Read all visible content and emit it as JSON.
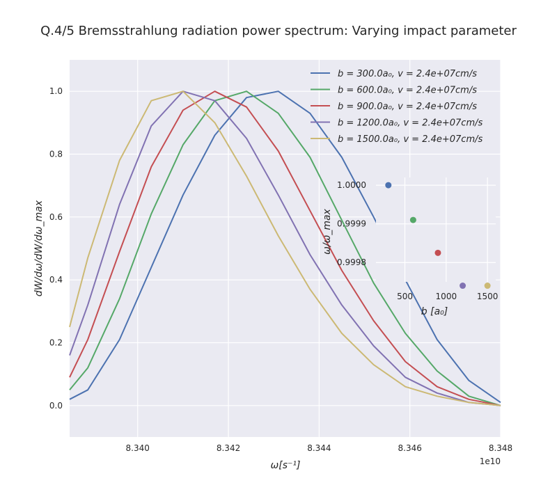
{
  "chart_data": [
    {
      "type": "line",
      "title": "Q.4/5 Bremsstrahlung radiation power spectrum: Varying impact parameter",
      "xlabel": "ω[s⁻¹]",
      "ylabel": "dW/dω/dW/dω_max",
      "x_offset_label": "1e10",
      "xlim": [
        83385000000.0,
        83480000000.0
      ],
      "ylim": [
        -0.1,
        1.1
      ],
      "xticks": [
        83400000000.0,
        83420000000.0,
        83440000000.0,
        83460000000.0,
        83480000000.0
      ],
      "xtick_labels": [
        "8.340",
        "8.342",
        "8.344",
        "8.346",
        "8.348"
      ],
      "yticks": [
        0.0,
        0.2,
        0.4,
        0.6,
        0.8,
        1.0
      ],
      "ytick_labels": [
        "0.0",
        "0.2",
        "0.4",
        "0.6",
        "0.8",
        "1.0"
      ],
      "grid": true,
      "legend_position": "top-right",
      "series": [
        {
          "name": "b = 300.0a₀, v = 2.4e+07cm/s",
          "color": "#4c72b0",
          "x": [
            83385000000.0,
            83389000000.0,
            83396000000.0,
            83403000000.0,
            83410000000.0,
            83417000000.0,
            83424000000.0,
            83431000000.0,
            83438000000.0,
            83445000000.0,
            83452000000.0,
            83459000000.0,
            83466000000.0,
            83473000000.0,
            83480000000.0
          ],
          "y": [
            0.02,
            0.05,
            0.21,
            0.44,
            0.67,
            0.86,
            0.98,
            1.0,
            0.93,
            0.79,
            0.6,
            0.4,
            0.21,
            0.08,
            0.01
          ]
        },
        {
          "name": "b = 600.0a₀, v = 2.4e+07cm/s",
          "color": "#55a868",
          "x": [
            83385000000.0,
            83389000000.0,
            83396000000.0,
            83403000000.0,
            83410000000.0,
            83417000000.0,
            83424000000.0,
            83431000000.0,
            83438000000.0,
            83445000000.0,
            83452000000.0,
            83459000000.0,
            83466000000.0,
            83473000000.0,
            83480000000.0
          ],
          "y": [
            0.05,
            0.12,
            0.34,
            0.61,
            0.83,
            0.97,
            1.0,
            0.93,
            0.79,
            0.59,
            0.39,
            0.23,
            0.11,
            0.03,
            0.0
          ]
        },
        {
          "name": "b = 900.0a₀, v = 2.4e+07cm/s",
          "color": "#c44e52",
          "x": [
            83385000000.0,
            83389000000.0,
            83396000000.0,
            83403000000.0,
            83410000000.0,
            83417000000.0,
            83424000000.0,
            83431000000.0,
            83438000000.0,
            83445000000.0,
            83452000000.0,
            83459000000.0,
            83466000000.0,
            83473000000.0,
            83480000000.0
          ],
          "y": [
            0.09,
            0.21,
            0.49,
            0.76,
            0.94,
            1.0,
            0.95,
            0.81,
            0.62,
            0.43,
            0.27,
            0.14,
            0.06,
            0.02,
            0.0
          ]
        },
        {
          "name": "b = 1200.0a₀, v = 2.4e+07cm/s",
          "color": "#8172b2",
          "x": [
            83385000000.0,
            83389000000.0,
            83396000000.0,
            83403000000.0,
            83410000000.0,
            83417000000.0,
            83424000000.0,
            83431000000.0,
            83438000000.0,
            83445000000.0,
            83452000000.0,
            83459000000.0,
            83466000000.0,
            83473000000.0,
            83480000000.0
          ],
          "y": [
            0.16,
            0.32,
            0.64,
            0.89,
            1.0,
            0.97,
            0.85,
            0.67,
            0.48,
            0.32,
            0.19,
            0.09,
            0.04,
            0.01,
            0.0
          ]
        },
        {
          "name": "b = 1500.0a₀, v = 2.4e+07cm/s",
          "color": "#ccb974",
          "x": [
            83385000000.0,
            83389000000.0,
            83396000000.0,
            83403000000.0,
            83410000000.0,
            83417000000.0,
            83424000000.0,
            83431000000.0,
            83438000000.0,
            83445000000.0,
            83452000000.0,
            83459000000.0,
            83466000000.0,
            83473000000.0,
            83480000000.0
          ],
          "y": [
            0.25,
            0.47,
            0.78,
            0.97,
            1.0,
            0.9,
            0.73,
            0.54,
            0.37,
            0.23,
            0.13,
            0.06,
            0.03,
            0.01,
            0.0
          ]
        }
      ]
    },
    {
      "type": "scatter",
      "xlabel": "b [a₀]",
      "ylabel": "ω/ω_max",
      "xlim": [
        150,
        1600
      ],
      "ylim": [
        0.99975,
        1.00002
      ],
      "xticks": [
        500,
        1000,
        1500
      ],
      "xtick_labels": [
        "500",
        "1000",
        "1500"
      ],
      "yticks": [
        0.9998,
        0.9999,
        1.0
      ],
      "ytick_labels": [
        "0.9998",
        "0.9999",
        "1.0000"
      ],
      "grid": true,
      "points": [
        {
          "x": 300,
          "y": 1.0,
          "color": "#4c72b0"
        },
        {
          "x": 600,
          "y": 0.99991,
          "color": "#55a868"
        },
        {
          "x": 900,
          "y": 0.999825,
          "color": "#c44e52"
        },
        {
          "x": 1200,
          "y": 0.99974,
          "color": "#8172b2"
        },
        {
          "x": 1500,
          "y": 0.99974,
          "color": "#ccb974"
        }
      ]
    }
  ]
}
